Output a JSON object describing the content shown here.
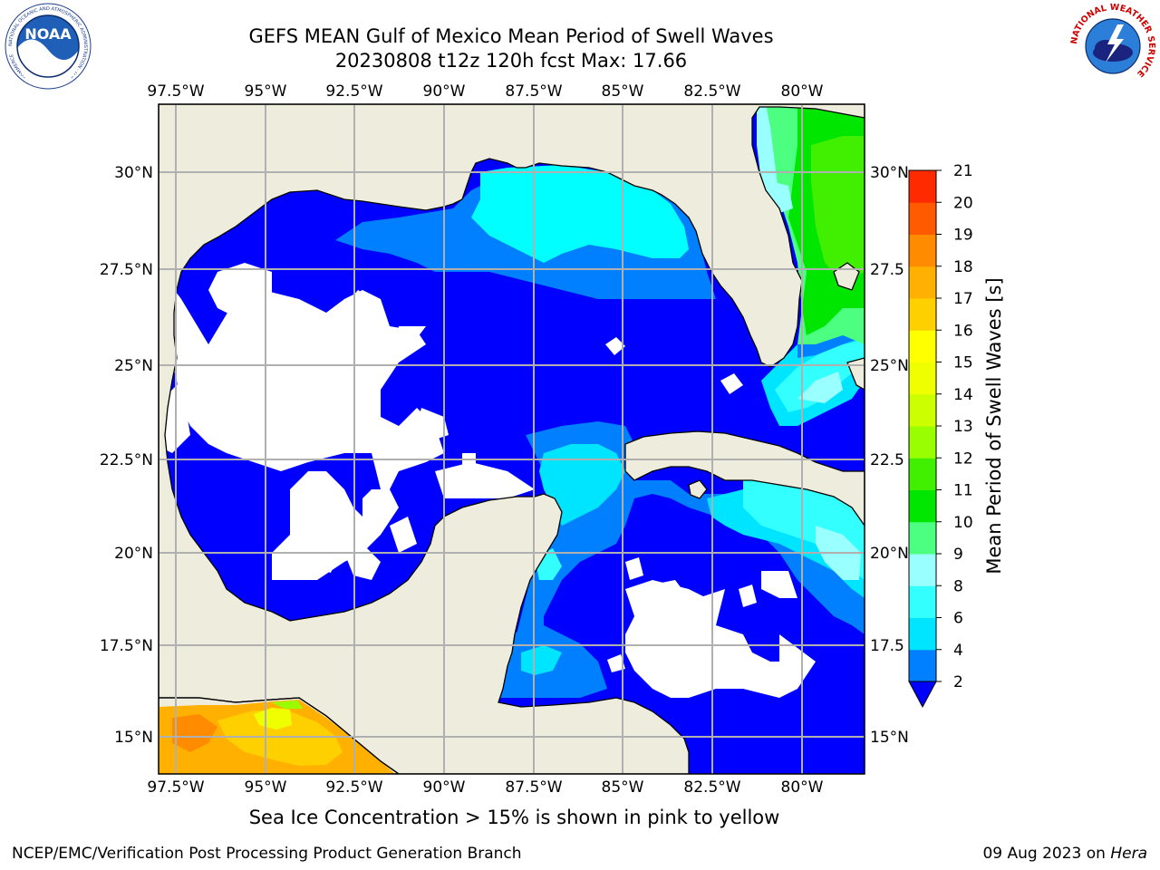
{
  "header": {
    "title_line1": "GEFS MEAN Gulf of Mexico Mean Period of Swell Waves",
    "title_line2": "20230808 t12z 120h fcst   Max: 17.66"
  },
  "logos": {
    "left": "NOAA",
    "left_ring_text": "NATIONAL OCEANIC AND ATMOSPHERIC ADMINISTRATION · U.S. DEPARTMENT OF COMMERCE",
    "right_ring_text": "NATIONAL WEATHER SERVICE"
  },
  "axes": {
    "lon_labels": [
      "97.5°W",
      "95°W",
      "92.5°W",
      "90°W",
      "87.5°W",
      "85°W",
      "82.5°W",
      "80°W"
    ],
    "lat_labels_left": [
      "30°N",
      "27.5°N",
      "25°N",
      "22.5°N",
      "20°N",
      "17.5°N",
      "15°N"
    ],
    "lat_labels_right": [
      "30°N",
      "27.5",
      "25°N",
      "22.5",
      "20°N",
      "17.5",
      "15°N"
    ]
  },
  "colorbar": {
    "label": "Mean Period of Swell Waves [s]",
    "ticks": [
      "2",
      "4",
      "6",
      "8",
      "9",
      "10",
      "11",
      "12",
      "13",
      "14",
      "15",
      "16",
      "17",
      "18",
      "19",
      "20",
      "21"
    ],
    "colors": [
      "#0026ff",
      "#0080ff",
      "#00e5ff",
      "#33ffff",
      "#99ffff",
      "#4dff80",
      "#00e600",
      "#40f000",
      "#99ff00",
      "#ccff00",
      "#f0ff00",
      "#ffff00",
      "#ffd000",
      "#ffb000",
      "#ff8c00",
      "#ff5a00",
      "#ff2a00",
      "#ff0000"
    ],
    "extend_color": "#0000ff"
  },
  "colors": {
    "land": "#eeecdc",
    "low_period": "#0000ff"
  },
  "caption": "Sea Ice Concentration > 15% is shown in pink to yellow",
  "footer": {
    "left": "NCEP/EMC/Verification Post Processing Product Generation Branch",
    "right_prefix": "09 Aug 2023 on ",
    "right_host": "Hera"
  }
}
